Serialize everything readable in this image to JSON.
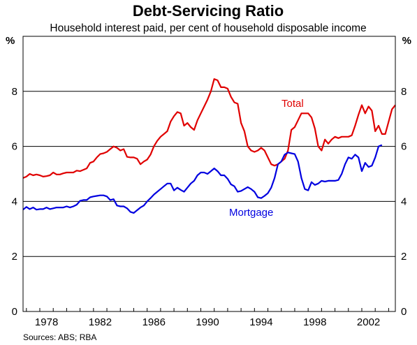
{
  "chart_data": {
    "type": "line",
    "title": "Debt-Servicing Ratio",
    "subtitle": "Household interest paid, per cent of household disposable income",
    "y_unit_left": "%",
    "y_unit_right": "%",
    "ylim": [
      0,
      10
    ],
    "yticks": [
      "0",
      "2",
      "4",
      "6",
      "8"
    ],
    "xlim": [
      1976.75,
      2002.75
    ],
    "xticks": [
      {
        "value": 1978,
        "label": "1978"
      },
      {
        "value": 1982,
        "label": "1982"
      },
      {
        "value": 1986,
        "label": "1986"
      },
      {
        "value": 1990,
        "label": "1990"
      },
      {
        "value": 1994,
        "label": "1994"
      },
      {
        "value": 1998,
        "label": "1998"
      },
      {
        "value": 2002,
        "label": "2002"
      }
    ],
    "grid": true,
    "source": "Sources: ABS; RBA",
    "series": [
      {
        "name": "Total",
        "color": "#e00000",
        "points": [
          [
            1976.75,
            4.85
          ],
          [
            1977.0,
            4.9
          ],
          [
            1977.25,
            5.0
          ],
          [
            1977.5,
            4.95
          ],
          [
            1977.75,
            4.98
          ],
          [
            1978.0,
            4.95
          ],
          [
            1978.25,
            4.9
          ],
          [
            1978.5,
            4.92
          ],
          [
            1978.75,
            4.95
          ],
          [
            1979.0,
            5.05
          ],
          [
            1979.25,
            4.98
          ],
          [
            1979.5,
            4.98
          ],
          [
            1979.75,
            5.02
          ],
          [
            1980.0,
            5.05
          ],
          [
            1980.5,
            5.05
          ],
          [
            1980.75,
            5.12
          ],
          [
            1981.0,
            5.1
          ],
          [
            1981.25,
            5.15
          ],
          [
            1981.5,
            5.2
          ],
          [
            1981.75,
            5.4
          ],
          [
            1982.0,
            5.45
          ],
          [
            1982.25,
            5.6
          ],
          [
            1982.5,
            5.72
          ],
          [
            1982.75,
            5.75
          ],
          [
            1983.0,
            5.8
          ],
          [
            1983.25,
            5.9
          ],
          [
            1983.5,
            6.0
          ],
          [
            1983.75,
            5.95
          ],
          [
            1984.0,
            5.85
          ],
          [
            1984.25,
            5.9
          ],
          [
            1984.5,
            5.62
          ],
          [
            1984.75,
            5.6
          ],
          [
            1985.0,
            5.6
          ],
          [
            1985.25,
            5.55
          ],
          [
            1985.5,
            5.35
          ],
          [
            1985.75,
            5.45
          ],
          [
            1986.0,
            5.52
          ],
          [
            1986.25,
            5.7
          ],
          [
            1986.5,
            6.0
          ],
          [
            1986.75,
            6.2
          ],
          [
            1987.0,
            6.35
          ],
          [
            1987.25,
            6.45
          ],
          [
            1987.5,
            6.55
          ],
          [
            1987.75,
            6.9
          ],
          [
            1988.0,
            7.1
          ],
          [
            1988.25,
            7.25
          ],
          [
            1988.5,
            7.2
          ],
          [
            1988.75,
            6.75
          ],
          [
            1989.0,
            6.85
          ],
          [
            1989.25,
            6.7
          ],
          [
            1989.5,
            6.6
          ],
          [
            1989.75,
            6.95
          ],
          [
            1990.0,
            7.2
          ],
          [
            1990.25,
            7.45
          ],
          [
            1990.5,
            7.7
          ],
          [
            1990.75,
            8.0
          ],
          [
            1991.0,
            8.45
          ],
          [
            1991.25,
            8.4
          ],
          [
            1991.5,
            8.15
          ],
          [
            1991.75,
            8.15
          ],
          [
            1992.0,
            8.1
          ],
          [
            1992.25,
            7.8
          ],
          [
            1992.5,
            7.6
          ],
          [
            1992.75,
            7.55
          ],
          [
            1993.0,
            6.85
          ],
          [
            1993.25,
            6.55
          ],
          [
            1993.5,
            6.0
          ],
          [
            1993.75,
            5.85
          ],
          [
            1994.0,
            5.8
          ],
          [
            1994.25,
            5.85
          ],
          [
            1994.5,
            5.95
          ],
          [
            1994.75,
            5.85
          ],
          [
            1995.0,
            5.6
          ],
          [
            1995.25,
            5.35
          ],
          [
            1995.5,
            5.3
          ],
          [
            1995.75,
            5.35
          ],
          [
            1996.0,
            5.45
          ],
          [
            1996.25,
            5.55
          ],
          [
            1996.5,
            5.85
          ],
          [
            1996.75,
            6.6
          ],
          [
            1997.0,
            6.7
          ],
          [
            1997.25,
            6.95
          ],
          [
            1997.5,
            7.2
          ],
          [
            1997.75,
            7.2
          ],
          [
            1998.0,
            7.2
          ],
          [
            1998.25,
            7.05
          ],
          [
            1998.5,
            6.65
          ],
          [
            1998.75,
            6.0
          ],
          [
            1999.0,
            5.85
          ],
          [
            1999.25,
            6.25
          ],
          [
            1999.5,
            6.1
          ],
          [
            1999.75,
            6.25
          ],
          [
            2000.0,
            6.35
          ],
          [
            2000.25,
            6.3
          ],
          [
            2000.5,
            6.35
          ],
          [
            2000.75,
            6.35
          ],
          [
            2001.0,
            6.35
          ],
          [
            2001.25,
            6.4
          ],
          [
            2001.5,
            6.75
          ],
          [
            2001.75,
            7.15
          ],
          [
            2002.0,
            7.5
          ],
          [
            2002.25,
            7.2
          ],
          [
            2002.5,
            7.45
          ],
          [
            2002.75,
            7.3
          ],
          [
            2003.0,
            6.55
          ],
          [
            2003.25,
            6.75
          ],
          [
            2003.5,
            6.45
          ],
          [
            2003.75,
            6.45
          ],
          [
            2004.0,
            6.9
          ],
          [
            2004.25,
            7.35
          ],
          [
            2004.5,
            7.5
          ]
        ]
      },
      {
        "name": "Mortgage",
        "color": "#0000e0",
        "points": [
          [
            1976.75,
            3.7
          ],
          [
            1977.0,
            3.8
          ],
          [
            1977.25,
            3.72
          ],
          [
            1977.5,
            3.78
          ],
          [
            1977.75,
            3.7
          ],
          [
            1978.0,
            3.72
          ],
          [
            1978.25,
            3.72
          ],
          [
            1978.5,
            3.78
          ],
          [
            1978.75,
            3.72
          ],
          [
            1979.0,
            3.75
          ],
          [
            1979.25,
            3.78
          ],
          [
            1979.5,
            3.78
          ],
          [
            1979.75,
            3.78
          ],
          [
            1980.0,
            3.82
          ],
          [
            1980.25,
            3.78
          ],
          [
            1980.5,
            3.82
          ],
          [
            1980.75,
            3.88
          ],
          [
            1981.0,
            4.02
          ],
          [
            1981.25,
            4.05
          ],
          [
            1981.5,
            4.05
          ],
          [
            1981.75,
            4.15
          ],
          [
            1982.0,
            4.18
          ],
          [
            1982.25,
            4.2
          ],
          [
            1982.5,
            4.22
          ],
          [
            1982.75,
            4.22
          ],
          [
            1983.0,
            4.18
          ],
          [
            1983.25,
            4.05
          ],
          [
            1983.5,
            4.08
          ],
          [
            1983.75,
            3.85
          ],
          [
            1984.0,
            3.82
          ],
          [
            1984.25,
            3.82
          ],
          [
            1984.5,
            3.75
          ],
          [
            1984.75,
            3.62
          ],
          [
            1985.0,
            3.58
          ],
          [
            1985.25,
            3.68
          ],
          [
            1985.5,
            3.78
          ],
          [
            1985.75,
            3.85
          ],
          [
            1986.0,
            4.0
          ],
          [
            1986.25,
            4.12
          ],
          [
            1986.5,
            4.25
          ],
          [
            1986.75,
            4.35
          ],
          [
            1987.0,
            4.45
          ],
          [
            1987.25,
            4.55
          ],
          [
            1987.5,
            4.65
          ],
          [
            1987.75,
            4.65
          ],
          [
            1988.0,
            4.4
          ],
          [
            1988.25,
            4.5
          ],
          [
            1988.5,
            4.42
          ],
          [
            1988.75,
            4.35
          ],
          [
            1989.0,
            4.5
          ],
          [
            1989.25,
            4.65
          ],
          [
            1989.5,
            4.75
          ],
          [
            1989.75,
            4.95
          ],
          [
            1990.0,
            5.05
          ],
          [
            1990.25,
            5.05
          ],
          [
            1990.5,
            5.0
          ],
          [
            1990.75,
            5.1
          ],
          [
            1991.0,
            5.2
          ],
          [
            1991.25,
            5.1
          ],
          [
            1991.5,
            4.95
          ],
          [
            1991.75,
            4.95
          ],
          [
            1992.0,
            4.82
          ],
          [
            1992.25,
            4.62
          ],
          [
            1992.5,
            4.55
          ],
          [
            1992.75,
            4.35
          ],
          [
            1993.0,
            4.38
          ],
          [
            1993.25,
            4.45
          ],
          [
            1993.5,
            4.52
          ],
          [
            1993.75,
            4.45
          ],
          [
            1994.0,
            4.35
          ],
          [
            1994.25,
            4.15
          ],
          [
            1994.5,
            4.12
          ],
          [
            1994.75,
            4.2
          ],
          [
            1995.0,
            4.3
          ],
          [
            1995.25,
            4.5
          ],
          [
            1995.5,
            4.85
          ],
          [
            1995.75,
            5.35
          ],
          [
            1996.0,
            5.45
          ],
          [
            1996.25,
            5.7
          ],
          [
            1996.5,
            5.78
          ],
          [
            1996.75,
            5.75
          ],
          [
            1997.0,
            5.72
          ],
          [
            1997.25,
            5.45
          ],
          [
            1997.5,
            4.85
          ],
          [
            1997.75,
            4.45
          ],
          [
            1998.0,
            4.4
          ],
          [
            1998.25,
            4.7
          ],
          [
            1998.5,
            4.6
          ],
          [
            1998.75,
            4.65
          ],
          [
            1999.0,
            4.75
          ],
          [
            1999.25,
            4.72
          ],
          [
            1999.5,
            4.75
          ],
          [
            1999.75,
            4.75
          ],
          [
            2000.0,
            4.75
          ],
          [
            2000.25,
            4.78
          ],
          [
            2000.5,
            5.0
          ],
          [
            2000.75,
            5.35
          ],
          [
            2001.0,
            5.6
          ],
          [
            2001.25,
            5.55
          ],
          [
            2001.5,
            5.7
          ],
          [
            2001.75,
            5.6
          ],
          [
            2002.0,
            5.1
          ],
          [
            2002.25,
            5.4
          ],
          [
            2002.5,
            5.25
          ],
          [
            2002.75,
            5.3
          ],
          [
            2003.0,
            5.6
          ],
          [
            2003.25,
            6.0
          ],
          [
            2003.5,
            6.05
          ]
        ]
      }
    ],
    "annotations": [
      {
        "text": "Total",
        "series": "Total"
      },
      {
        "text": "Mortgage",
        "series": "Mortgage"
      }
    ]
  }
}
